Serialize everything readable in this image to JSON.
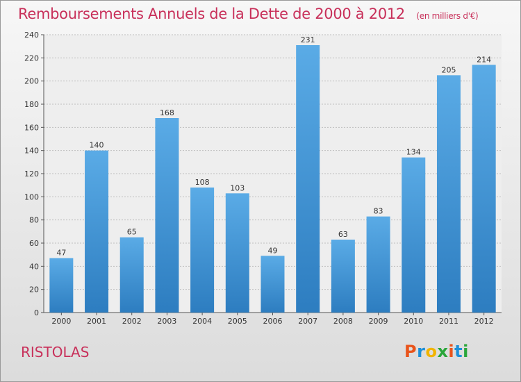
{
  "chart_data": {
    "type": "bar",
    "title": "Remboursements Annuels de la Dette de 2000 à 2012",
    "unit_note": "(en milliers d'€)",
    "categories": [
      "2000",
      "2001",
      "2002",
      "2003",
      "2004",
      "2005",
      "2006",
      "2007",
      "2008",
      "2009",
      "2010",
      "2011",
      "2012"
    ],
    "values": [
      47,
      140,
      65,
      168,
      108,
      103,
      49,
      231,
      63,
      83,
      134,
      205,
      214
    ],
    "ylim": [
      0,
      240
    ],
    "yticks": [
      0,
      20,
      40,
      60,
      80,
      100,
      120,
      140,
      160,
      180,
      200,
      220,
      240
    ],
    "grid": true,
    "bar_color_top": "#5aabe6",
    "bar_color_bottom": "#2d7dc0"
  },
  "commune": "RISTOLAS",
  "logo": {
    "letters": [
      "P",
      "r",
      "o",
      "x",
      "i",
      "t",
      "i"
    ],
    "colors": [
      "#e9541b",
      "#1e90d8",
      "#f1b400",
      "#2aa63a",
      "#e9541b",
      "#1e90d8",
      "#2aa63a"
    ]
  },
  "colors": {
    "title": "#c8305a",
    "axis": "#555555",
    "grid": "#bdbdbd"
  }
}
